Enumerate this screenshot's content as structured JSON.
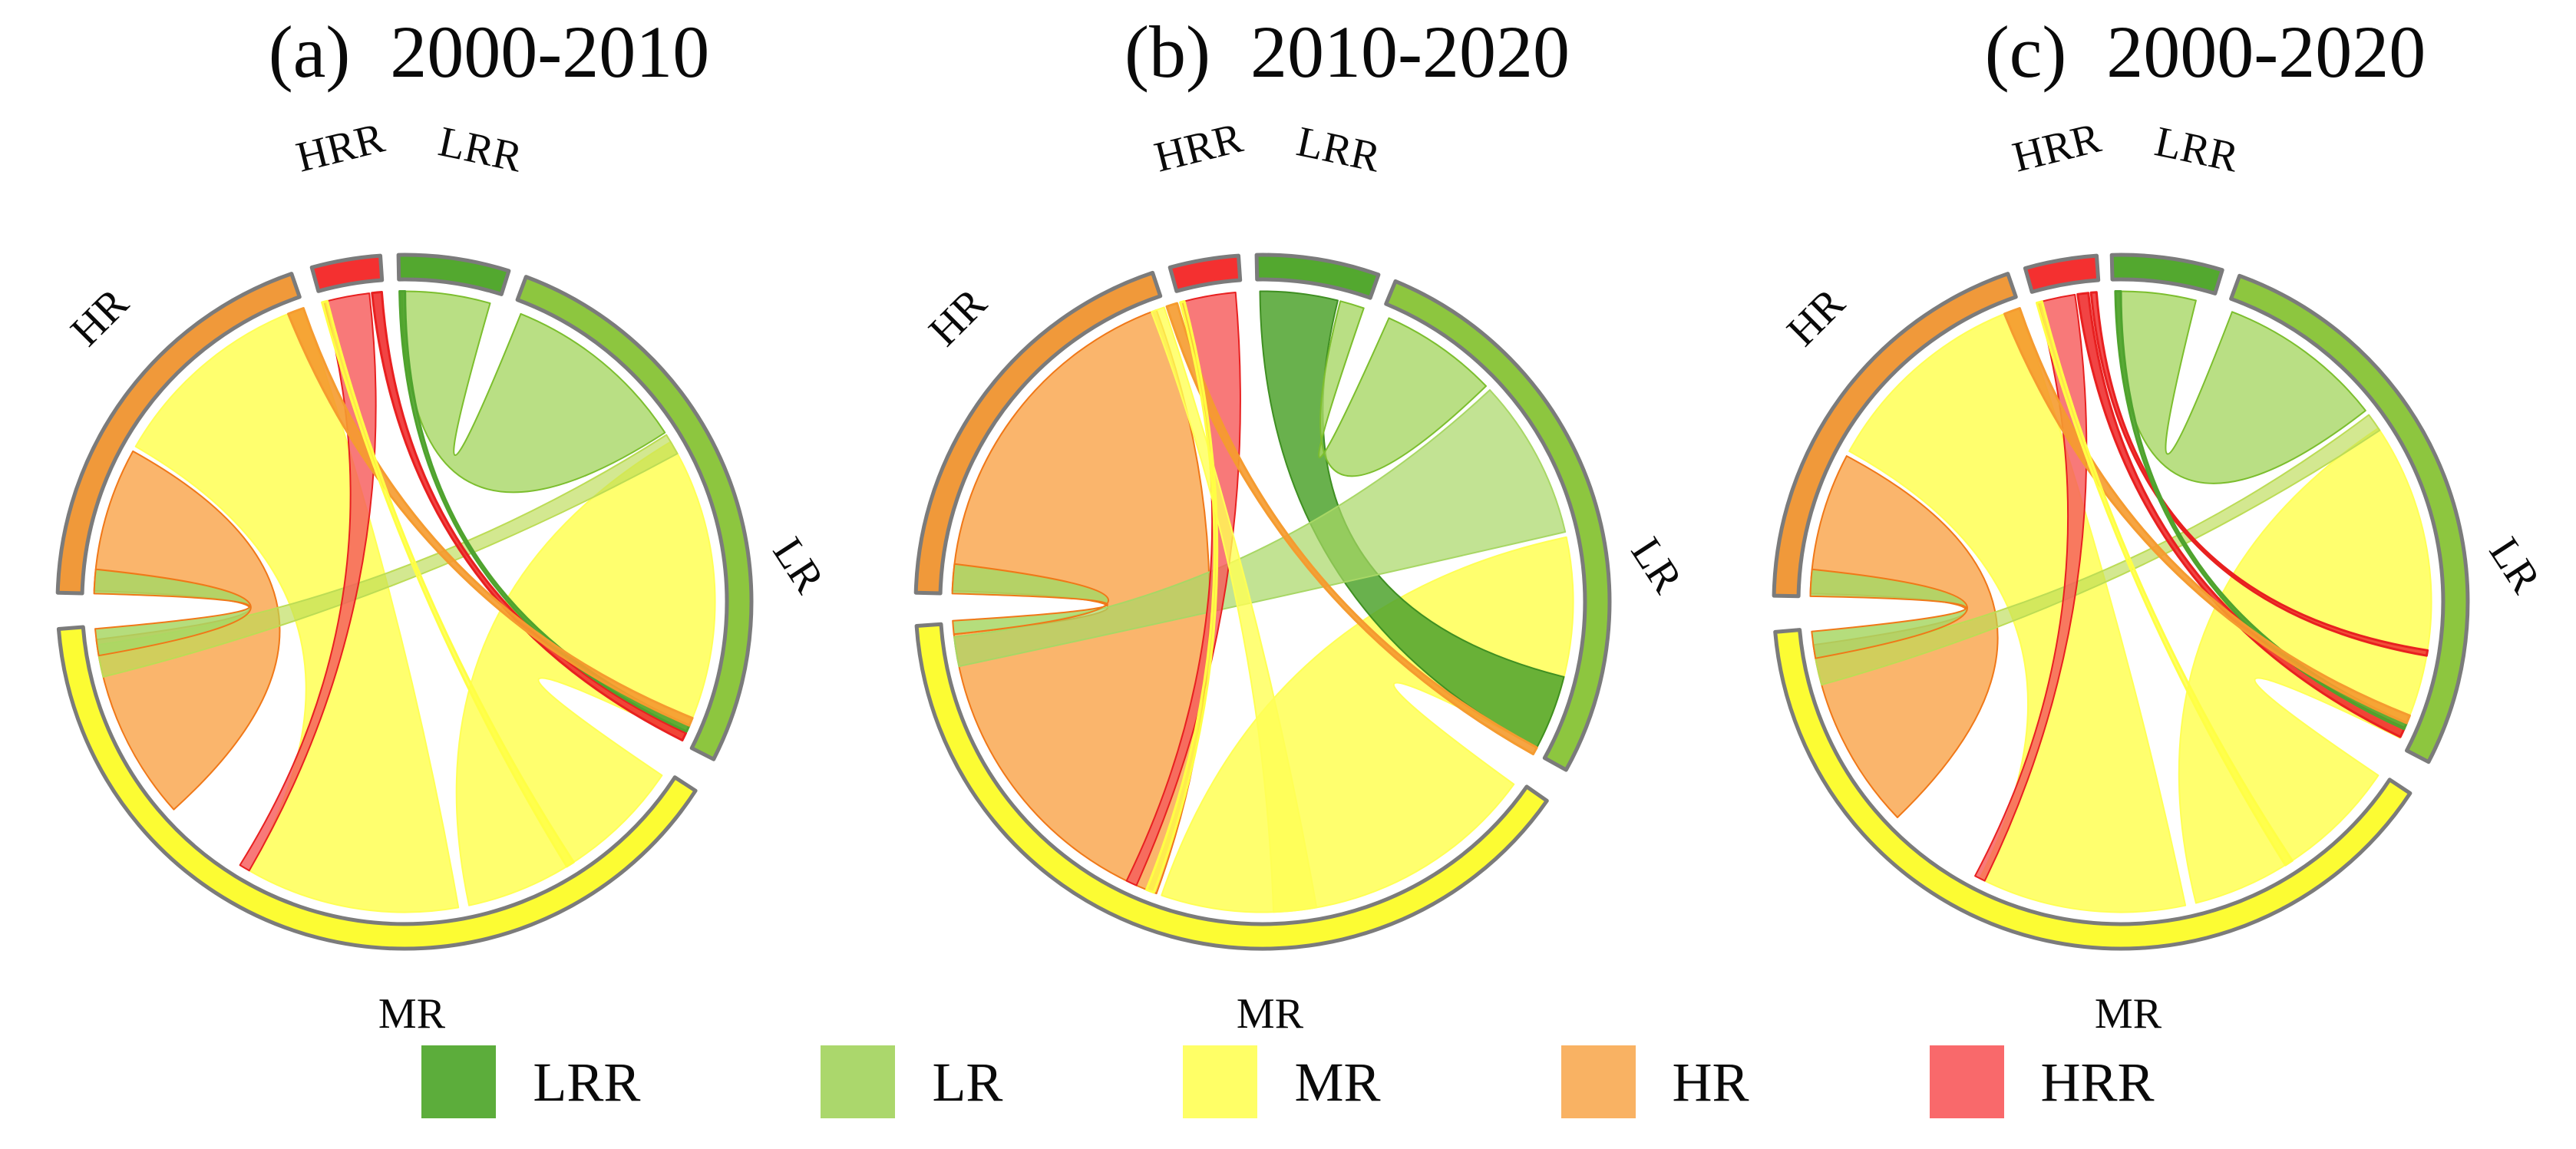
{
  "chart_data": {
    "type": "chord",
    "title": "",
    "description": "Three chord diagrams of transitions among five classes (LRR, LR, MR, HR, HRR) for three periods; ribbon and arc angles in compass degrees (0 = top, clockwise); ribbon widths approximate flow magnitude read from the figure.",
    "categories": [
      "LRR",
      "LR",
      "MR",
      "HR",
      "HRR"
    ],
    "category_colors": {
      "LRR": "#53A82F",
      "LR": "#8DC63F",
      "MR": "#FCFC33",
      "HR": "#F0993A",
      "HRR": "#F43030"
    },
    "panels": [
      {
        "id": "a",
        "title_prefix": "(a)",
        "title_period": "2000-2010",
        "center": [
          527,
          784
        ],
        "radius": 452,
        "segments": [
          {
            "id": "HR",
            "label": "HR",
            "color": "#F0993A",
            "start": 271.5,
            "end": 341,
            "label_bearing": 313,
            "label_r": 1.19,
            "label_rot": -45
          },
          {
            "id": "HRR",
            "label": "HRR",
            "color": "#F43030",
            "start": 344.5,
            "end": 356,
            "label_bearing": 352,
            "label_r": 1.31,
            "label_rot": -14
          },
          {
            "id": "LRR",
            "label": "LRR",
            "color": "#53A82F",
            "start": 359,
            "end": 377.5,
            "label_bearing": 9.5,
            "label_r": 1.31,
            "label_rot": 12
          },
          {
            "id": "LR",
            "label": "LR",
            "color": "#8DC63F",
            "start": 20.5,
            "end": 117,
            "label_bearing": 85,
            "label_r": 1.13,
            "label_rot": 57
          },
          {
            "id": "MR",
            "label": "MR",
            "color": "#FCFC33",
            "start": 123,
            "end": 265.5,
            "label_bearing": 179,
            "label_r": 1.2,
            "label_rot": 0
          }
        ],
        "ribbons": [
          {
            "from": "MR",
            "to": "HR",
            "s": [
              170,
              210
            ],
            "t": [
              300,
              341
            ],
            "color": "#FFFF55",
            "opacity": 0.85
          },
          {
            "from": "HR",
            "to": "MR",
            "s": [
              272,
              299
            ],
            "t": [
              228,
              263
            ],
            "color": "#F9AD5C",
            "stroke": "#F07818",
            "opacity": 0.9
          },
          {
            "from": "LRR",
            "to": "LR",
            "s": [
              359.5,
              376
            ],
            "t": [
              22,
              57
            ],
            "color": "#A8D765",
            "stroke": "#7CBE2E",
            "opacity": 0.8
          },
          {
            "from": "LR",
            "to": "MR",
            "s": [
              59,
              116
            ],
            "t": [
              124,
              168
            ],
            "color": "#FFFF55",
            "opacity": 0.85
          },
          {
            "from": "LR",
            "to": "MR",
            "s": [
              57.5,
              61.5
            ],
            "t": [
              256,
              262
            ],
            "color": "#BCDC55",
            "opacity": 0.65
          },
          {
            "from": "HRR",
            "to": "MR",
            "s": [
              345,
              353.5
            ],
            "t": [
              210,
              212
            ],
            "color": "#F75B5B",
            "stroke": "#E82020",
            "opacity": 0.82
          },
          {
            "from": "HRR",
            "to": "LR",
            "s": [
              354,
              355.8
            ],
            "t": [
              115,
              116.5
            ],
            "color": "#F03030",
            "stroke": "#E82020",
            "opacity": 0.9
          },
          {
            "from": "LRR",
            "to": "LR",
            "s": [
              359.1,
              360.1
            ],
            "t": [
              113.5,
              114.7
            ],
            "color": "#4FA32E",
            "opacity": 0.9
          },
          {
            "from": "HR",
            "to": "LR",
            "s": [
              338,
              341
            ],
            "t": [
              112,
              113.5
            ],
            "color": "#F59B2F",
            "opacity": 0.9
          },
          {
            "from": "MR",
            "to": "HR",
            "s": [
              260,
              265
            ],
            "t": [
              271.5,
              276
            ],
            "color": "#A8D765",
            "stroke": "#F07818",
            "opacity": 0.85
          },
          {
            "from": "MR",
            "to": "HRR",
            "s": [
              147,
              148.5
            ],
            "t": [
              344.6,
              345.6
            ],
            "color": "#FFFF44",
            "opacity": 0.8
          }
        ]
      },
      {
        "id": "b",
        "title_prefix": "(b)",
        "title_period": "2010-2020",
        "center": [
          1645,
          784
        ],
        "radius": 452,
        "segments": [
          {
            "id": "HR",
            "label": "HR",
            "color": "#F0993A",
            "start": 271.5,
            "end": 341.5,
            "label_bearing": 313,
            "label_r": 1.19,
            "label_rot": -45
          },
          {
            "id": "HRR",
            "label": "HRR",
            "color": "#F43030",
            "start": 344.5,
            "end": 356,
            "label_bearing": 352,
            "label_r": 1.31,
            "label_rot": -14
          },
          {
            "id": "LRR",
            "label": "LRR",
            "color": "#53A82F",
            "start": 359,
            "end": 379.5,
            "label_bearing": 9.5,
            "label_r": 1.31,
            "label_rot": 12
          },
          {
            "id": "LR",
            "label": "LR",
            "color": "#8DC63F",
            "start": 22.5,
            "end": 119,
            "label_bearing": 85,
            "label_r": 1.13,
            "label_rot": 57
          },
          {
            "id": "MR",
            "label": "MR",
            "color": "#FCFC33",
            "start": 125,
            "end": 266,
            "label_bearing": 179,
            "label_r": 1.2,
            "label_rot": 0
          }
        ],
        "ribbons": [
          {
            "from": "HR",
            "to": "MR",
            "s": [
              272,
              340
            ],
            "t": [
              200,
              264
            ],
            "color": "#F9AD5C",
            "stroke": "#F07818",
            "opacity": 0.9
          },
          {
            "from": "LR",
            "to": "MR",
            "s": [
              78,
              118
            ],
            "t": [
              126,
              199
            ],
            "color": "#FFFF55",
            "opacity": 0.85
          },
          {
            "from": "LRR",
            "to": "LR",
            "s": [
              359.5,
              374
            ],
            "t": [
              104,
              118
            ],
            "color": "#4FA32E",
            "stroke": "#3F8F22",
            "opacity": 0.85
          },
          {
            "from": "LRR",
            "to": "LR",
            "s": [
              374.5,
              379
            ],
            "t": [
              24,
              46
            ],
            "color": "#A8D765",
            "stroke": "#7CBE2E",
            "opacity": 0.8
          },
          {
            "from": "LR",
            "to": "MR",
            "s": [
              47,
              77
            ],
            "t": [
              258,
              263.5
            ],
            "color": "#A8D765",
            "opacity": 0.7
          },
          {
            "from": "MR",
            "to": "HR",
            "s": [
              264,
              266.5
            ],
            "t": [
              271.5,
              277
            ],
            "color": "#A8D765",
            "stroke": "#F07818",
            "opacity": 0.85
          },
          {
            "from": "HRR",
            "to": "MR",
            "s": [
              345,
              355
            ],
            "t": [
              204,
              206
            ],
            "color": "#F75B5B",
            "stroke": "#E82020",
            "opacity": 0.82
          },
          {
            "from": "HR",
            "to": "LR",
            "s": [
              342,
              344
            ],
            "t": [
              118,
              119.4
            ],
            "color": "#F59B2F",
            "opacity": 0.9
          },
          {
            "from": "MR",
            "to": "HR",
            "s": [
              170,
              178
            ],
            "t": [
              339,
              341.5
            ],
            "color": "#FFFF55",
            "opacity": 0.8
          },
          {
            "from": "MR",
            "to": "HRR",
            "s": [
              200.5,
              202
            ],
            "t": [
              344.6,
              345.4
            ],
            "color": "#FFFF44",
            "opacity": 0.75
          }
        ]
      },
      {
        "id": "c",
        "title_prefix": "(c)",
        "title_period": "2000-2020",
        "center": [
          2763,
          784
        ],
        "radius": 452,
        "segments": [
          {
            "id": "HR",
            "label": "HR",
            "color": "#F0993A",
            "start": 271,
            "end": 341,
            "label_bearing": 313,
            "label_r": 1.19,
            "label_rot": -45
          },
          {
            "id": "HRR",
            "label": "HRR",
            "color": "#F43030",
            "start": 344,
            "end": 356,
            "label_bearing": 352,
            "label_r": 1.31,
            "label_rot": -14
          },
          {
            "id": "LRR",
            "label": "LRR",
            "color": "#53A82F",
            "start": 358.5,
            "end": 377,
            "label_bearing": 9.5,
            "label_r": 1.31,
            "label_rot": 12
          },
          {
            "id": "LR",
            "label": "LR",
            "color": "#8DC63F",
            "start": 20,
            "end": 117.5,
            "label_bearing": 85,
            "label_r": 1.13,
            "label_rot": 57
          },
          {
            "id": "MR",
            "label": "MR",
            "color": "#FCFC33",
            "start": 123.5,
            "end": 265,
            "label_bearing": 179,
            "label_r": 1.2,
            "label_rot": 0
          }
        ],
        "ribbons": [
          {
            "from": "MR",
            "to": "HR",
            "s": [
              168,
              207
            ],
            "t": [
              299,
              341
            ],
            "color": "#FFFF55",
            "opacity": 0.85
          },
          {
            "from": "HR",
            "to": "MR",
            "s": [
              271.5,
              298
            ],
            "t": [
              226,
              262
            ],
            "color": "#F9AD5C",
            "stroke": "#F07818",
            "opacity": 0.9
          },
          {
            "from": "LRR",
            "to": "LR",
            "s": [
              359,
              374
            ],
            "t": [
              21,
              52
            ],
            "color": "#A8D765",
            "stroke": "#7CBE2E",
            "opacity": 0.8
          },
          {
            "from": "LR",
            "to": "MR",
            "s": [
              56,
              116
            ],
            "t": [
              124,
              166
            ],
            "color": "#FFFF55",
            "opacity": 0.85
          },
          {
            "from": "LR",
            "to": "MR",
            "s": [
              53,
              56.5
            ],
            "t": [
              254.5,
              259.5
            ],
            "color": "#BCDC55",
            "opacity": 0.65
          },
          {
            "from": "HRR",
            "to": "MR",
            "s": [
              344.5,
              351.5
            ],
            "t": [
              206,
              208
            ],
            "color": "#F75B5B",
            "stroke": "#E82020",
            "opacity": 0.82
          },
          {
            "from": "HRR",
            "to": "LR",
            "s": [
              352,
              354
            ],
            "t": [
              114,
              115.8
            ],
            "color": "#F03030",
            "stroke": "#E82020",
            "opacity": 0.9
          },
          {
            "from": "HRR",
            "to": "LR",
            "s": [
              354.5,
              355.5
            ],
            "t": [
              99,
              100
            ],
            "color": "#F03030",
            "stroke": "#E82020",
            "opacity": 0.85
          },
          {
            "from": "LRR",
            "to": "LR",
            "s": [
              359,
              360
            ],
            "t": [
              113,
              114.2
            ],
            "color": "#4FA32E",
            "opacity": 0.9
          },
          {
            "from": "HR",
            "to": "LR",
            "s": [
              338,
              341
            ],
            "t": [
              111.5,
              113
            ],
            "color": "#F59B2F",
            "opacity": 0.9
          },
          {
            "from": "MR",
            "to": "HR",
            "s": [
              259.5,
              264.5
            ],
            "t": [
              271,
              276
            ],
            "color": "#A8D765",
            "stroke": "#F07818",
            "opacity": 0.85
          },
          {
            "from": "MR",
            "to": "HRR",
            "s": [
              146.5,
              148
            ],
            "t": [
              344.3,
              345.3
            ],
            "color": "#FFFF44",
            "opacity": 0.8
          }
        ]
      }
    ],
    "layout": {
      "arc_band_thickness": 32,
      "arc_outline_color": "#7B7B7B",
      "ribbon_anchor_ratio": 0.895,
      "segment_label_font_px": 56,
      "background": "#FFFFFF"
    }
  },
  "legend": {
    "items": [
      {
        "label": "LRR",
        "color": "#5CAD3B"
      },
      {
        "label": "LR",
        "color": "#ABD76C"
      },
      {
        "label": "MR",
        "color": "#FFFF66"
      },
      {
        "label": "HR",
        "color": "#F9B263"
      },
      {
        "label": "HRR",
        "color": "#F9696B"
      }
    ]
  }
}
